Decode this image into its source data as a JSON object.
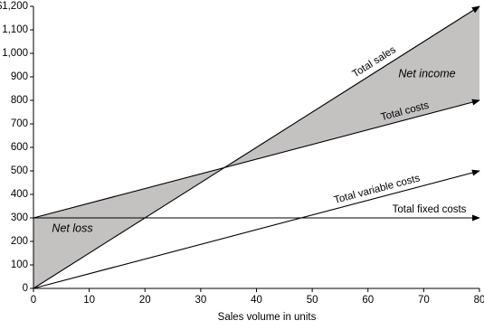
{
  "chart_data": {
    "type": "line",
    "x": [
      0,
      80
    ],
    "series": [
      {
        "name": "Total sales",
        "color": "#000000",
        "values": [
          0,
          1200
        ]
      },
      {
        "name": "Total costs",
        "color": "#000000",
        "values": [
          300,
          800
        ]
      },
      {
        "name": "Total variable costs",
        "color": "#000000",
        "values": [
          0,
          500
        ]
      },
      {
        "name": "Total fixed costs",
        "color": "#000000",
        "values": [
          300,
          300
        ]
      }
    ],
    "fill_between_color": "#c4c1c1",
    "annotations": [
      "Net income",
      "Net loss"
    ],
    "xlabel": "Sales volume in units",
    "xlim": [
      0,
      80
    ],
    "xticks": [
      0,
      10,
      20,
      30,
      40,
      50,
      60,
      70,
      80
    ],
    "ylim": [
      0,
      1200
    ],
    "yticks": [
      0,
      100,
      200,
      300,
      400,
      500,
      600,
      700,
      800,
      900,
      {
        "value": 1000,
        "label": "1,000"
      },
      {
        "value": 1100,
        "label": "1,100"
      },
      {
        "value": 1200,
        "label": "$1,200"
      }
    ]
  }
}
